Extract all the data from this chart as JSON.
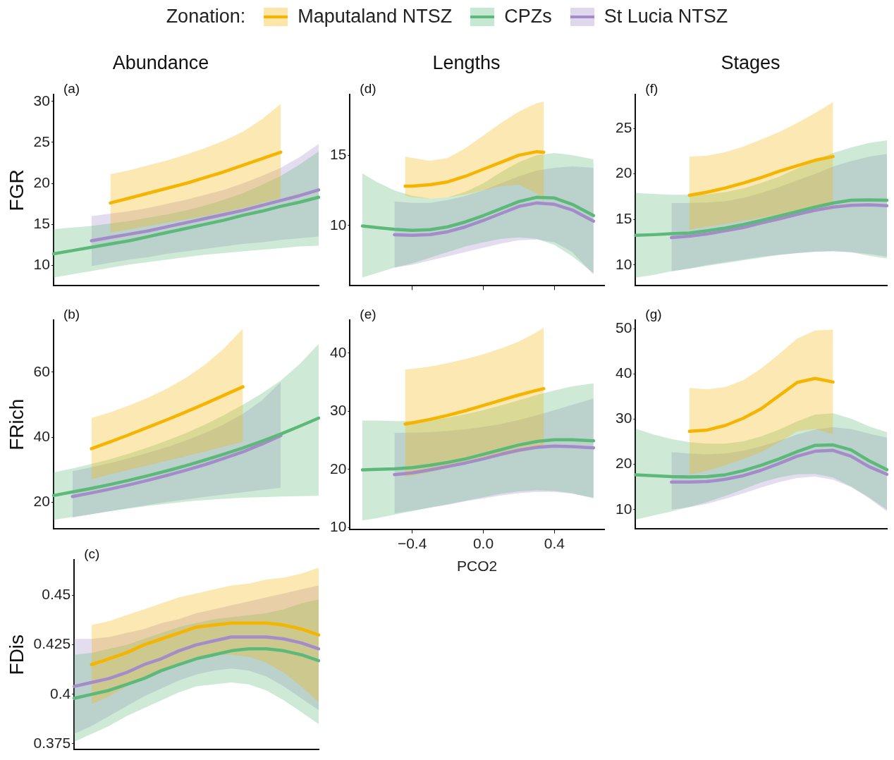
{
  "chart_data": [
    {
      "type": "line",
      "title": "Abundance",
      "ylabel": "FGR",
      "legend": "top",
      "legend_title": "Zonation:",
      "annotations": [
        "(a)"
      ],
      "tick_labels": "y",
      "categories": [
        null,
        null,
        null,
        null,
        null,
        null,
        null,
        null,
        null,
        null,
        null,
        null,
        null,
        null,
        null
      ],
      "ylim": [
        7.5,
        30.8
      ],
      "yticks": [
        10,
        15,
        20,
        25,
        30
      ],
      "series": [
        {
          "name": "Maputaland NTSZ",
          "color": "#f5b400",
          "values": [
            null,
            null,
            null,
            17.6,
            18.2,
            18.8,
            19.4,
            20.0,
            20.7,
            21.4,
            22.2,
            23.0,
            23.8,
            null,
            null
          ],
          "lower": [
            null,
            null,
            null,
            14.0,
            14.4,
            14.8,
            15.2,
            15.6,
            16.0,
            16.5,
            17.0,
            17.6,
            18.2,
            null,
            null
          ],
          "upper": [
            null,
            null,
            null,
            21.1,
            21.6,
            22.2,
            22.8,
            23.5,
            24.3,
            25.2,
            26.3,
            27.8,
            29.7,
            null,
            null
          ]
        },
        {
          "name": "CPZs",
          "color": "#5cb97a",
          "values": [
            11.4,
            11.8,
            12.2,
            12.6,
            13.0,
            13.5,
            14.0,
            14.5,
            15.0,
            15.5,
            16.1,
            16.6,
            17.2,
            17.7,
            18.3
          ],
          "lower": [
            8.5,
            8.9,
            9.3,
            9.7,
            10.1,
            10.4,
            10.7,
            11.0,
            11.3,
            11.5,
            11.7,
            11.9,
            12.1,
            12.3,
            12.4
          ],
          "upper": [
            14.4,
            14.6,
            14.8,
            15.1,
            15.4,
            15.8,
            16.2,
            16.7,
            17.3,
            18.0,
            18.8,
            19.8,
            20.9,
            22.3,
            23.9
          ]
        },
        {
          "name": "St Lucia NTSZ",
          "color": "#a48bc9",
          "values": [
            null,
            null,
            13.0,
            13.4,
            13.8,
            14.2,
            14.7,
            15.2,
            15.7,
            16.2,
            16.7,
            17.3,
            17.9,
            18.5,
            19.2
          ],
          "lower": [
            null,
            null,
            9.9,
            10.3,
            10.7,
            11.0,
            11.4,
            11.7,
            12.0,
            12.3,
            12.6,
            12.8,
            13.1,
            13.3,
            13.5
          ],
          "upper": [
            null,
            null,
            16.0,
            16.3,
            16.6,
            17.0,
            17.5,
            18.0,
            18.6,
            19.2,
            20.0,
            20.9,
            21.9,
            23.2,
            24.8
          ]
        }
      ]
    },
    {
      "type": "line",
      "ylabel": "FRich",
      "annotations": [
        "(b)"
      ],
      "tick_labels": "y",
      "categories": [
        null,
        null,
        null,
        null,
        null,
        null,
        null,
        null,
        null,
        null,
        null,
        null,
        null,
        null,
        null
      ],
      "ylim": [
        11.8,
        76
      ],
      "yticks": [
        20,
        40,
        60
      ],
      "series": [
        {
          "color": "#f5b400",
          "values": [
            null,
            null,
            36.5,
            38.6,
            40.8,
            43.1,
            45.4,
            47.8,
            50.3,
            52.9,
            55.5,
            null,
            null,
            null,
            null
          ],
          "lower": [
            null,
            null,
            27.1,
            28.6,
            30.0,
            31.4,
            32.8,
            34.2,
            35.6,
            37.1,
            38.6,
            null,
            null,
            null,
            null
          ],
          "upper": [
            null,
            null,
            45.9,
            47.7,
            49.8,
            52.2,
            55.0,
            58.3,
            62.3,
            67.3,
            73.4,
            null,
            null,
            null,
            null
          ]
        },
        {
          "color": "#5cb97a",
          "values": [
            22.1,
            23.2,
            24.3,
            25.5,
            26.8,
            28.2,
            29.7,
            31.3,
            33.0,
            34.8,
            36.7,
            38.8,
            41.0,
            43.4,
            45.9
          ],
          "lower": [
            14.6,
            15.5,
            16.4,
            17.3,
            18.1,
            18.9,
            19.6,
            20.2,
            20.7,
            21.1,
            21.4,
            21.6,
            21.8,
            21.9,
            22.0
          ],
          "upper": [
            29.2,
            30.4,
            31.8,
            33.3,
            35.0,
            36.9,
            39.0,
            41.3,
            43.9,
            46.8,
            50.0,
            53.5,
            57.4,
            62.5,
            68.7
          ]
        },
        {
          "color": "#a48bc9",
          "values": [
            null,
            21.8,
            22.9,
            24.1,
            25.4,
            26.8,
            28.3,
            29.9,
            31.6,
            33.5,
            35.5,
            37.9,
            40.5,
            null,
            null
          ],
          "lower": [
            null,
            15.3,
            16.3,
            17.3,
            18.3,
            19.2,
            20.1,
            20.9,
            21.7,
            22.4,
            23.1,
            23.8,
            24.5,
            null,
            null
          ],
          "upper": [
            null,
            29.6,
            30.8,
            32.1,
            33.6,
            35.2,
            37.0,
            39.0,
            41.3,
            44.0,
            47.2,
            51.3,
            57.0,
            null,
            null
          ]
        }
      ]
    },
    {
      "type": "line",
      "ylabel": "FDis",
      "annotations": [
        "(c)"
      ],
      "tick_labels": "y",
      "categories": [
        null,
        null,
        null,
        null,
        null,
        null,
        null,
        null,
        null,
        null,
        null,
        null,
        null,
        null,
        null
      ],
      "ylim": [
        0.372,
        0.468
      ],
      "yticks": [
        0.375,
        0.4,
        0.425,
        0.45
      ],
      "series": [
        {
          "color": "#f5b400",
          "values": [
            null,
            0.415,
            0.418,
            0.421,
            0.425,
            0.428,
            0.431,
            0.434,
            0.435,
            0.436,
            0.436,
            0.436,
            0.435,
            0.433,
            0.43
          ],
          "lower": [
            null,
            0.395,
            0.399,
            0.404,
            0.408,
            0.412,
            0.416,
            0.419,
            0.42,
            0.42,
            0.419,
            0.416,
            0.411,
            0.404,
            0.396
          ],
          "upper": [
            null,
            0.435,
            0.437,
            0.44,
            0.443,
            0.446,
            0.449,
            0.451,
            0.453,
            0.455,
            0.456,
            0.458,
            0.459,
            0.461,
            0.464
          ]
        },
        {
          "color": "#5cb97a",
          "values": [
            0.398,
            0.4,
            0.402,
            0.405,
            0.408,
            0.412,
            0.415,
            0.418,
            0.42,
            0.422,
            0.423,
            0.423,
            0.422,
            0.42,
            0.417
          ],
          "lower": [
            0.376,
            0.38,
            0.384,
            0.389,
            0.393,
            0.397,
            0.401,
            0.404,
            0.405,
            0.406,
            0.405,
            0.402,
            0.397,
            0.391,
            0.385
          ],
          "upper": [
            0.42,
            0.421,
            0.423,
            0.425,
            0.428,
            0.431,
            0.434,
            0.436,
            0.438,
            0.439,
            0.44,
            0.441,
            0.443,
            0.446,
            0.448
          ]
        },
        {
          "color": "#a48bc9",
          "values": [
            0.404,
            0.406,
            0.408,
            0.411,
            0.415,
            0.418,
            0.422,
            0.425,
            0.427,
            0.429,
            0.429,
            0.429,
            0.428,
            0.426,
            0.423
          ],
          "lower": [
            0.38,
            0.384,
            0.389,
            0.394,
            0.399,
            0.403,
            0.407,
            0.41,
            0.412,
            0.413,
            0.412,
            0.409,
            0.404,
            0.398,
            0.392
          ],
          "upper": [
            0.428,
            0.428,
            0.429,
            0.431,
            0.433,
            0.436,
            0.438,
            0.441,
            0.443,
            0.445,
            0.447,
            0.449,
            0.451,
            0.453,
            0.455
          ]
        }
      ]
    },
    {
      "type": "line",
      "title": "Lengths",
      "annotations": [
        "(d)"
      ],
      "tick_labels": "y",
      "xlim": [
        -0.75,
        0.68
      ],
      "xticks": [
        {
          "value": -0.4,
          "label": null
        },
        {
          "value": 0,
          "label": null
        },
        {
          "value": 0.4,
          "label": null
        }
      ],
      "ylim": [
        5.7,
        19.3
      ],
      "yticks": [
        10,
        15
      ],
      "series": [
        {
          "color": "#f5b400",
          "x": [
            -0.44,
            -0.4,
            -0.3,
            -0.2,
            -0.1,
            0,
            0.1,
            0.2,
            0.3,
            0.34
          ],
          "values": [
            12.8,
            12.8,
            12.9,
            13.1,
            13.5,
            14.0,
            14.5,
            15.0,
            15.25,
            15.2
          ],
          "lower": [
            12.1,
            12.0,
            11.9,
            12.0,
            12.2,
            12.5,
            12.8,
            12.9,
            12.3,
            11.7
          ],
          "upper": [
            14.9,
            14.8,
            14.6,
            14.8,
            15.5,
            16.4,
            17.3,
            18.1,
            18.7,
            18.8
          ]
        },
        {
          "color": "#5cb97a",
          "x": [
            -0.68,
            -0.6,
            -0.5,
            -0.4,
            -0.3,
            -0.2,
            -0.1,
            0,
            0.1,
            0.2,
            0.3,
            0.4,
            0.5,
            0.62
          ],
          "values": [
            9.96,
            9.85,
            9.72,
            9.65,
            9.7,
            9.9,
            10.25,
            10.7,
            11.2,
            11.7,
            12.0,
            11.95,
            11.5,
            10.7
          ],
          "lower": [
            6.3,
            6.6,
            7.0,
            7.3,
            7.7,
            8.1,
            8.5,
            8.8,
            9.05,
            9.15,
            9.05,
            8.6,
            7.8,
            6.6
          ],
          "upper": [
            13.7,
            13.1,
            12.5,
            12.1,
            11.9,
            12.0,
            12.4,
            13.0,
            13.8,
            14.5,
            15.0,
            15.15,
            15.0,
            14.7
          ]
        },
        {
          "color": "#a48bc9",
          "x": [
            -0.5,
            -0.4,
            -0.3,
            -0.2,
            -0.1,
            0,
            0.1,
            0.2,
            0.3,
            0.4,
            0.5,
            0.62
          ],
          "values": [
            9.33,
            9.3,
            9.35,
            9.55,
            9.9,
            10.35,
            10.85,
            11.35,
            11.6,
            11.5,
            11.1,
            10.3
          ],
          "lower": [
            7.0,
            7.2,
            7.5,
            7.8,
            8.1,
            8.4,
            8.7,
            8.95,
            9.0,
            8.8,
            8.1,
            6.5
          ],
          "upper": [
            11.7,
            11.6,
            11.6,
            11.8,
            12.1,
            12.5,
            13.0,
            13.5,
            13.9,
            14.1,
            14.2,
            14.1
          ]
        }
      ]
    },
    {
      "type": "line",
      "xlabel": "PCO2",
      "annotations": [
        "(e)"
      ],
      "xlim": [
        -0.75,
        0.68
      ],
      "xticks": [
        {
          "value": -0.4,
          "label": "−0.4"
        },
        {
          "value": 0,
          "label": "0.0"
        },
        0.4
      ],
      "ylim": [
        9.7,
        45.7
      ],
      "yticks": [
        10,
        20,
        30,
        40
      ],
      "series": [
        {
          "color": "#f5b400",
          "x": [
            -0.44,
            -0.4,
            -0.3,
            -0.2,
            -0.1,
            0,
            0.1,
            0.2,
            0.3,
            0.34
          ],
          "values": [
            27.8,
            28.0,
            28.6,
            29.3,
            30.1,
            31.0,
            31.9,
            32.8,
            33.6,
            33.9
          ],
          "lower": [
            18.7,
            18.9,
            19.5,
            20.2,
            20.9,
            21.6,
            22.3,
            22.9,
            23.5,
            23.7
          ],
          "upper": [
            37.2,
            37.3,
            37.7,
            38.3,
            39.0,
            39.8,
            40.8,
            42.0,
            43.6,
            44.4
          ]
        },
        {
          "color": "#5cb97a",
          "x": [
            -0.68,
            -0.6,
            -0.5,
            -0.4,
            -0.3,
            -0.2,
            -0.1,
            0,
            0.1,
            0.2,
            0.3,
            0.4,
            0.5,
            0.62
          ],
          "values": [
            19.9,
            20.0,
            20.1,
            20.3,
            20.7,
            21.2,
            21.8,
            22.6,
            23.4,
            24.2,
            24.8,
            25.1,
            25.1,
            24.9
          ],
          "lower": [
            11.2,
            11.6,
            12.2,
            12.8,
            13.4,
            14.0,
            14.6,
            15.2,
            15.8,
            16.2,
            16.4,
            16.3,
            15.9,
            15.0
          ],
          "upper": [
            28.4,
            28.4,
            28.3,
            28.3,
            28.5,
            28.9,
            29.5,
            30.2,
            31.0,
            31.9,
            32.8,
            33.6,
            34.3,
            34.8
          ]
        },
        {
          "color": "#a48bc9",
          "x": [
            -0.5,
            -0.4,
            -0.3,
            -0.2,
            -0.1,
            0,
            0.1,
            0.2,
            0.3,
            0.4,
            0.5,
            0.62
          ],
          "values": [
            19.1,
            19.4,
            19.9,
            20.5,
            21.1,
            21.8,
            22.6,
            23.3,
            23.8,
            24.0,
            23.9,
            23.7
          ],
          "lower": [
            12.4,
            12.9,
            13.4,
            13.9,
            14.5,
            15.0,
            15.5,
            15.9,
            16.1,
            16.1,
            15.8,
            15.1
          ],
          "upper": [
            26.3,
            26.3,
            26.4,
            26.6,
            26.9,
            27.3,
            27.8,
            28.5,
            29.3,
            30.2,
            31.1,
            32.2
          ]
        }
      ]
    },
    {
      "type": "line",
      "title": "Stages",
      "annotations": [
        "(f)"
      ],
      "tick_labels": "y",
      "categories": [
        null,
        null,
        null,
        null,
        null,
        null,
        null,
        null,
        null,
        null,
        null,
        null,
        null,
        null,
        null
      ],
      "ylim": [
        7.7,
        28.7
      ],
      "yticks": [
        10,
        15,
        20,
        25
      ],
      "series": [
        {
          "color": "#f5b400",
          "values": [
            null,
            null,
            null,
            17.65,
            18.0,
            18.45,
            19.0,
            19.6,
            20.3,
            20.9,
            21.5,
            21.9,
            null,
            null,
            null
          ],
          "lower": [
            null,
            null,
            null,
            13.9,
            14.2,
            14.5,
            14.85,
            15.2,
            15.55,
            15.8,
            16.0,
            16.1,
            null,
            null,
            null
          ],
          "upper": [
            null,
            null,
            null,
            21.9,
            22.0,
            22.4,
            23.0,
            23.8,
            24.6,
            25.6,
            26.7,
            27.9,
            null,
            null,
            null
          ]
        },
        {
          "color": "#5cb97a",
          "values": [
            13.25,
            13.32,
            13.42,
            13.5,
            13.75,
            14.05,
            14.43,
            14.88,
            15.37,
            15.86,
            16.35,
            16.8,
            17.1,
            17.15,
            17.1
          ],
          "lower": [
            8.6,
            8.9,
            9.3,
            9.6,
            9.9,
            10.2,
            10.5,
            10.8,
            11.1,
            11.3,
            11.45,
            11.5,
            11.4,
            11.0,
            10.7
          ],
          "upper": [
            17.9,
            17.8,
            17.7,
            17.7,
            17.75,
            18.0,
            18.4,
            19.0,
            19.7,
            20.6,
            21.5,
            22.3,
            22.9,
            23.4,
            23.7
          ]
        },
        {
          "color": "#a48bc9",
          "values": [
            null,
            null,
            13.0,
            13.15,
            13.4,
            13.75,
            14.1,
            14.6,
            15.05,
            15.55,
            16.0,
            16.35,
            16.55,
            16.6,
            16.5
          ],
          "lower": [
            null,
            null,
            9.3,
            9.6,
            10.0,
            10.3,
            10.6,
            10.9,
            11.1,
            11.3,
            11.45,
            11.5,
            11.4,
            11.2,
            10.9
          ],
          "upper": [
            null,
            null,
            16.8,
            16.8,
            16.85,
            17.0,
            17.35,
            17.9,
            18.55,
            19.3,
            20.0,
            20.8,
            21.4,
            21.9,
            22.2
          ]
        }
      ]
    },
    {
      "type": "line",
      "annotations": [
        "(g)"
      ],
      "tick_labels": "y",
      "categories": [
        null,
        null,
        null,
        null,
        null,
        null,
        null,
        null,
        null,
        null,
        null,
        null,
        null,
        null,
        null
      ],
      "ylim": [
        5.7,
        51.9
      ],
      "yticks": [
        10,
        20,
        30,
        40,
        50
      ],
      "series": [
        {
          "color": "#f5b400",
          "values": [
            null,
            null,
            null,
            27.3,
            27.6,
            28.6,
            30.2,
            32.3,
            35.2,
            38.1,
            39.0,
            38.2,
            null,
            null,
            null
          ],
          "lower": [
            null,
            null,
            null,
            17.8,
            18.6,
            19.8,
            21.2,
            22.7,
            24.9,
            27.3,
            27.8,
            26.6,
            null,
            null,
            null
          ],
          "upper": [
            null,
            null,
            null,
            36.9,
            36.6,
            37.1,
            38.6,
            41.2,
            44.4,
            47.8,
            49.6,
            49.8,
            null,
            null,
            null
          ]
        },
        {
          "color": "#5cb97a",
          "values": [
            17.7,
            17.5,
            17.3,
            17.2,
            17.3,
            17.7,
            18.6,
            19.8,
            21.2,
            22.8,
            24.2,
            24.3,
            23.2,
            20.8,
            18.8
          ],
          "lower": [
            7.8,
            8.7,
            9.6,
            10.6,
            11.7,
            13.0,
            14.5,
            16.0,
            17.1,
            17.8,
            17.9,
            17.1,
            15.1,
            12.7,
            10.0
          ],
          "upper": [
            27.9,
            26.6,
            25.6,
            24.9,
            24.6,
            24.6,
            25.1,
            26.2,
            27.7,
            29.5,
            31.0,
            31.3,
            30.1,
            28.4,
            27.1
          ]
        },
        {
          "color": "#a48bc9",
          "values": [
            null,
            null,
            16.1,
            16.1,
            16.2,
            16.7,
            17.5,
            18.7,
            20.2,
            21.8,
            22.9,
            23.1,
            21.8,
            19.5,
            17.8
          ],
          "lower": [
            null,
            null,
            10.0,
            10.5,
            11.3,
            12.4,
            13.6,
            14.9,
            16.1,
            17.0,
            17.3,
            16.6,
            15.0,
            12.5,
            9.6
          ],
          "upper": [
            null,
            null,
            22.7,
            22.4,
            22.2,
            22.4,
            23.0,
            24.0,
            25.2,
            26.6,
            27.7,
            28.2,
            27.8,
            26.8,
            25.9
          ]
        }
      ]
    }
  ]
}
